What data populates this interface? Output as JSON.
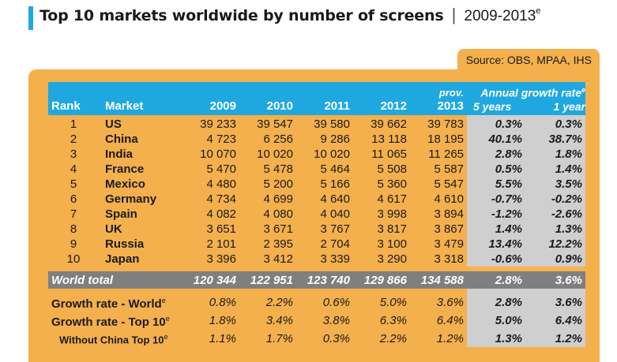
{
  "title": {
    "main": "Top 10 markets worldwide by number of screens",
    "separator": "|",
    "years": "2009-2013",
    "years_sup": "e"
  },
  "source": "Source: OBS, MPAA, IHS",
  "colors": {
    "accent_blue": "#1fa8e0",
    "panel_orange": "#f4b04d",
    "gray_band": "#cfcfcf",
    "world_row": "#7f7f7f"
  },
  "header": {
    "rank": "Rank",
    "market": "Market",
    "y2009": "2009",
    "y2010": "2010",
    "y2011": "2011",
    "y2012": "2012",
    "y2013_prov": "prov.",
    "y2013": "2013",
    "growth_title": "Annual growth rate",
    "growth_sup": "e",
    "g5": "5 years",
    "g1": "1 year"
  },
  "rows": [
    {
      "rank": "1",
      "market": "US",
      "v2009": "39 233",
      "v2010": "39 547",
      "v2011": "39 580",
      "v2012": "39 662",
      "v2013": "39 783",
      "g5": "0.3%",
      "g1": "0.3%"
    },
    {
      "rank": "2",
      "market": "China",
      "v2009": "4 723",
      "v2010": "6 256",
      "v2011": "9 286",
      "v2012": "13 118",
      "v2013": "18 195",
      "g5": "40.1%",
      "g1": "38.7%"
    },
    {
      "rank": "3",
      "market": "India",
      "v2009": "10 070",
      "v2010": "10 020",
      "v2011": "10 020",
      "v2012": "11 065",
      "v2013": "11 265",
      "g5": "2.8%",
      "g1": "1.8%"
    },
    {
      "rank": "4",
      "market": "France",
      "v2009": "5 470",
      "v2010": "5 478",
      "v2011": "5 464",
      "v2012": "5 508",
      "v2013": "5 587",
      "g5": "0.5%",
      "g1": "1.4%"
    },
    {
      "rank": "5",
      "market": "Mexico",
      "v2009": "4 480",
      "v2010": "5 200",
      "v2011": "5 166",
      "v2012": "5 360",
      "v2013": "5 547",
      "g5": "5.5%",
      "g1": "3.5%"
    },
    {
      "rank": "6",
      "market": "Germany",
      "v2009": "4 734",
      "v2010": "4 699",
      "v2011": "4 640",
      "v2012": "4 617",
      "v2013": "4 610",
      "g5": "-0.7%",
      "g1": "-0.2%"
    },
    {
      "rank": "7",
      "market": "Spain",
      "v2009": "4 082",
      "v2010": "4 080",
      "v2011": "4 040",
      "v2012": "3 998",
      "v2013": "3 894",
      "g5": "-1.2%",
      "g1": "-2.6%"
    },
    {
      "rank": "8",
      "market": "UK",
      "v2009": "3 651",
      "v2010": "3 671",
      "v2011": "3 767",
      "v2012": "3 817",
      "v2013": "3 867",
      "g5": "1.4%",
      "g1": "1.3%"
    },
    {
      "rank": "9",
      "market": "Russia",
      "v2009": "2 101",
      "v2010": "2 395",
      "v2011": "2 704",
      "v2012": "3 100",
      "v2013": "3 479",
      "g5": "13.4%",
      "g1": "12.2%"
    },
    {
      "rank": "10",
      "market": "Japan",
      "v2009": "3 396",
      "v2010": "3 412",
      "v2011": "3 339",
      "v2012": "3 290",
      "v2013": "3 318",
      "g5": "-0.6%",
      "g1": "0.9%"
    }
  ],
  "world_total": {
    "label": "World total",
    "v2009": "120 344",
    "v2010": "122 951",
    "v2011": "123 740",
    "v2012": "129 866",
    "v2013": "134 588",
    "g5": "2.8%",
    "g1": "3.6%"
  },
  "growth_rows": [
    {
      "label": "Growth rate - World",
      "sup": "e",
      "v2009": "0.8%",
      "v2010": "2.2%",
      "v2011": "0.6%",
      "v2012": "5.0%",
      "v2013": "3.6%",
      "g5": "2.8%",
      "g1": "3.6%"
    },
    {
      "label": "Growth rate - Top 10",
      "sup": "e",
      "v2009": "1.8%",
      "v2010": "3.4%",
      "v2011": "3.8%",
      "v2012": "6.3%",
      "v2013": "6.4%",
      "g5": "5.0%",
      "g1": "6.4%"
    },
    {
      "label": "Without China Top 10",
      "sup": "e",
      "v2009": "1.1%",
      "v2010": "1.7%",
      "v2011": "0.3%",
      "v2012": "2.2%",
      "v2013": "1.2%",
      "g5": "1.3%",
      "g1": "1.2%"
    }
  ]
}
